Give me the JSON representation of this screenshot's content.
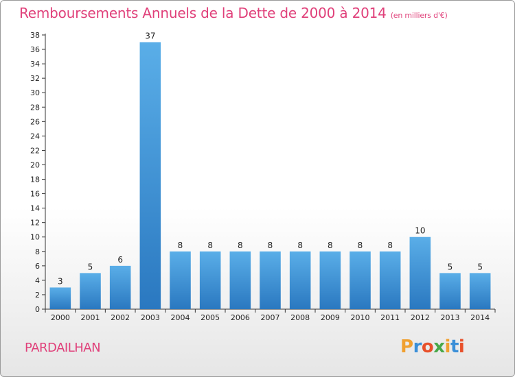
{
  "header": {
    "title": "Remboursements Annuels de la Dette de 2000 à 2014",
    "unit": "(en milliers d'€)"
  },
  "footer": {
    "commune": "PARDAILHAN",
    "logo_letters": [
      "P",
      "r",
      "o",
      "x",
      "i",
      "t",
      "i"
    ],
    "logo_colors": [
      "#f0a030",
      "#3a8fd8",
      "#e8502a",
      "#49a849",
      "#f0a030",
      "#3a8fd8",
      "#e8502a"
    ]
  },
  "colors": {
    "bar_light": "#5aaee8",
    "bar_dark": "#2a78c0",
    "title": "#e0407a",
    "grid_axis": "#333333"
  },
  "chart_data": {
    "type": "bar",
    "title": "Remboursements Annuels de la Dette de 2000 à 2014",
    "unit": "(en milliers d'€)",
    "categories": [
      "2000",
      "2001",
      "2002",
      "2003",
      "2004",
      "2005",
      "2006",
      "2007",
      "2008",
      "2009",
      "2010",
      "2011",
      "2012",
      "2013",
      "2014"
    ],
    "values": [
      3,
      5,
      6,
      37,
      8,
      8,
      8,
      8,
      8,
      8,
      8,
      8,
      10,
      5,
      5
    ],
    "xlabel": "",
    "ylabel": "",
    "ylim": [
      0,
      38
    ],
    "yticks": [
      0,
      2,
      4,
      6,
      8,
      10,
      12,
      14,
      16,
      18,
      20,
      22,
      24,
      26,
      28,
      30,
      32,
      34,
      36,
      38
    ],
    "grid": false,
    "legend": "none"
  }
}
